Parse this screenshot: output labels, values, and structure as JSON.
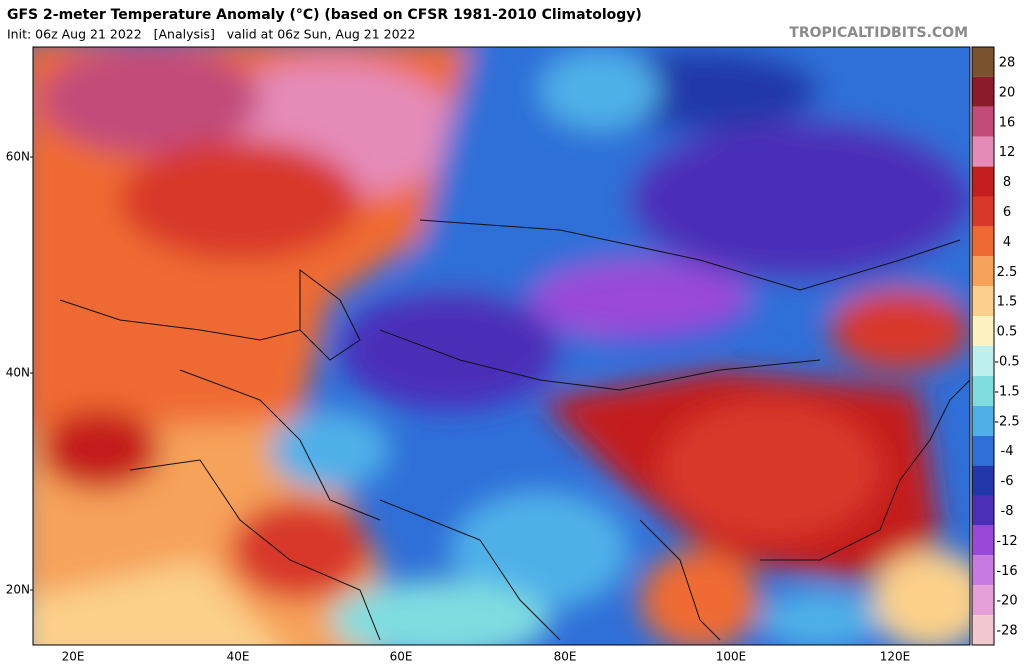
{
  "header": {
    "title": "GFS 2-meter Temperature Anomaly (°C) (based on CFSR 1981-2010 Climatology)",
    "subtitle": "Init: 06z Aug 21 2022   [Analysis]   valid at 06z Sun, Aug 21 2022",
    "source": "TROPICALTIDBITS.COM"
  },
  "map": {
    "lat_labels": [
      "60N",
      "40N",
      "20N"
    ],
    "lon_labels": [
      "20E",
      "40E",
      "60E",
      "80E",
      "100E",
      "120E"
    ]
  },
  "colorbar": {
    "levels": [
      28,
      20,
      16,
      12,
      8,
      6,
      4,
      2.5,
      1.5,
      0.5,
      -0.5,
      -1.5,
      -2.5,
      -4,
      -6,
      -8,
      -12,
      -16,
      -20,
      -28
    ],
    "colors": [
      "#7a5230",
      "#8b1a2b",
      "#c24b7a",
      "#e58bb8",
      "#c41e1e",
      "#d8382a",
      "#ef6a32",
      "#f6a25a",
      "#fbd08a",
      "#fff2c2",
      "#bff0f0",
      "#7fdde0",
      "#4fb0e8",
      "#2f6fd8",
      "#2338a8",
      "#4b2fb8",
      "#9a48d8",
      "#c77ae0",
      "#e6a0d8",
      "#f4c8d0"
    ]
  }
}
